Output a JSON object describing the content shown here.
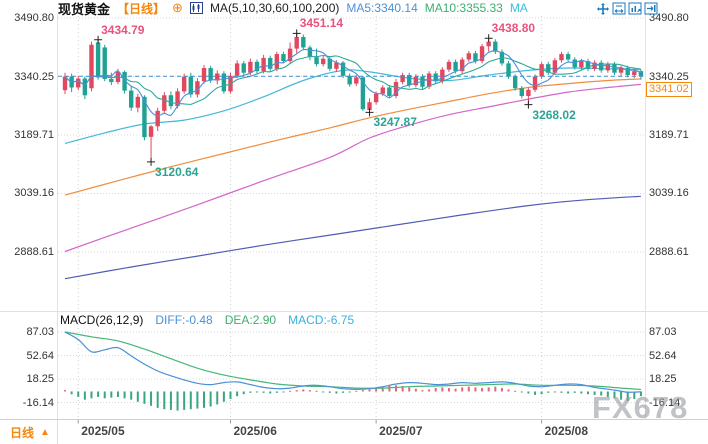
{
  "header": {
    "symbol": "现货黄金",
    "period": "【日线】",
    "icons": {
      "plus_circle": "⊕"
    },
    "ma_settings": "MA(5,10,30,60,100,200)",
    "ma5": "MA5:3340.14",
    "ma10": "MA10:3355.33",
    "ma30": "MA",
    "colors": {
      "ma5": "#4a90d9",
      "ma10": "#3cb06e",
      "ma30": "#39c0db",
      "accent": "#f5870f"
    }
  },
  "toolbar": {
    "icons": [
      "pan-icon",
      "fit-x-icon",
      "fit-y-icon",
      "jump-latest-icon"
    ]
  },
  "price_axis": {
    "labels": [
      "3490.80",
      "3340.25",
      "3189.71",
      "3039.16",
      "2888.61"
    ]
  },
  "current_price": {
    "value": "3341.02",
    "color": "#f5870f"
  },
  "macd": {
    "title": "MACD(26,12,9)",
    "diff_label": "DIFF:-0.48",
    "dea_label": "DEA:2.90",
    "macd_label": "MACD:-6.75",
    "axis_labels": [
      "87.03",
      "52.64",
      "18.25",
      "-16.14"
    ]
  },
  "time_axis": {
    "period": "日线",
    "arrow": "▲",
    "dates": [
      "2025/05",
      "2025/06",
      "2025/07",
      "2025/08"
    ]
  },
  "watermark": "FX678",
  "chart_data": {
    "type": "candlestick+macd",
    "title": "现货黄金 日线 (Spot Gold Daily)",
    "price_ticks": [
      3490.8,
      3340.25,
      3189.71,
      3039.16,
      2888.61
    ],
    "current_price": 3341.02,
    "candle_colors": {
      "up": "#e1485f",
      "down": "#1fa294"
    },
    "candles": [
      [
        3305,
        3350,
        3295,
        3340
      ],
      [
        3340,
        3348,
        3300,
        3312
      ],
      [
        3312,
        3342,
        3305,
        3335
      ],
      [
        3335,
        3340,
        3282,
        3292
      ],
      [
        3310,
        3430,
        3302,
        3422
      ],
      [
        3428,
        3434.79,
        3332,
        3338
      ],
      [
        3415,
        3422,
        3328,
        3334
      ],
      [
        3334,
        3350,
        3318,
        3326
      ],
      [
        3326,
        3360,
        3320,
        3352
      ],
      [
        3352,
        3356,
        3296,
        3304
      ],
      [
        3304,
        3316,
        3252,
        3260
      ],
      [
        3260,
        3296,
        3248,
        3288
      ],
      [
        3288,
        3292,
        3176,
        3184
      ],
      [
        3185,
        3215,
        3120.64,
        3212
      ],
      [
        3212,
        3260,
        3200,
        3252
      ],
      [
        3252,
        3300,
        3244,
        3292
      ],
      [
        3292,
        3302,
        3256,
        3264
      ],
      [
        3264,
        3310,
        3258,
        3302
      ],
      [
        3302,
        3348,
        3296,
        3340
      ],
      [
        3340,
        3350,
        3286,
        3294
      ],
      [
        3294,
        3336,
        3286,
        3328
      ],
      [
        3328,
        3370,
        3322,
        3362
      ],
      [
        3362,
        3368,
        3324,
        3330
      ],
      [
        3330,
        3356,
        3320,
        3348
      ],
      [
        3348,
        3354,
        3296,
        3302
      ],
      [
        3302,
        3350,
        3296,
        3342
      ],
      [
        3342,
        3382,
        3336,
        3374
      ],
      [
        3374,
        3380,
        3344,
        3350
      ],
      [
        3350,
        3386,
        3344,
        3378
      ],
      [
        3378,
        3384,
        3348,
        3354
      ],
      [
        3354,
        3396,
        3348,
        3388
      ],
      [
        3388,
        3394,
        3354,
        3360
      ],
      [
        3360,
        3404,
        3354,
        3398
      ],
      [
        3398,
        3404,
        3374,
        3380
      ],
      [
        3380,
        3428,
        3374,
        3412
      ],
      [
        3412,
        3451.14,
        3400,
        3442
      ],
      [
        3442,
        3448,
        3408,
        3415
      ],
      [
        3415,
        3420,
        3382,
        3390
      ],
      [
        3390,
        3412,
        3366,
        3372
      ],
      [
        3372,
        3394,
        3366,
        3386
      ],
      [
        3386,
        3392,
        3354,
        3360
      ],
      [
        3360,
        3382,
        3352,
        3376
      ],
      [
        3376,
        3380,
        3336,
        3342
      ],
      [
        3342,
        3348,
        3314,
        3320
      ],
      [
        3322,
        3344,
        3316,
        3338
      ],
      [
        3338,
        3342,
        3252,
        3256
      ],
      [
        3254,
        3284,
        3247.87,
        3274
      ],
      [
        3274,
        3302,
        3268,
        3296
      ],
      [
        3296,
        3318,
        3290,
        3312
      ],
      [
        3312,
        3318,
        3284,
        3290
      ],
      [
        3290,
        3334,
        3284,
        3326
      ],
      [
        3326,
        3350,
        3320,
        3344
      ],
      [
        3344,
        3350,
        3312,
        3318
      ],
      [
        3318,
        3346,
        3312,
        3340
      ],
      [
        3340,
        3346,
        3308,
        3314
      ],
      [
        3314,
        3354,
        3308,
        3348
      ],
      [
        3348,
        3354,
        3322,
        3328
      ],
      [
        3328,
        3364,
        3322,
        3358
      ],
      [
        3358,
        3384,
        3352,
        3378
      ],
      [
        3378,
        3384,
        3348,
        3354
      ],
      [
        3354,
        3390,
        3348,
        3384
      ],
      [
        3384,
        3406,
        3378,
        3400
      ],
      [
        3400,
        3406,
        3374,
        3380
      ],
      [
        3380,
        3424,
        3374,
        3418
      ],
      [
        3418,
        3438.8,
        3404,
        3430
      ],
      [
        3430,
        3436,
        3398,
        3404
      ],
      [
        3404,
        3410,
        3368,
        3374
      ],
      [
        3374,
        3380,
        3334,
        3340
      ],
      [
        3340,
        3346,
        3304,
        3310
      ],
      [
        3310,
        3316,
        3284,
        3290
      ],
      [
        3290,
        3312,
        3268.02,
        3306
      ],
      [
        3306,
        3346,
        3300,
        3340
      ],
      [
        3340,
        3378,
        3334,
        3372
      ],
      [
        3372,
        3378,
        3344,
        3350
      ],
      [
        3350,
        3388,
        3344,
        3382
      ],
      [
        3382,
        3404,
        3376,
        3398
      ],
      [
        3398,
        3404,
        3378,
        3384
      ],
      [
        3384,
        3390,
        3358,
        3364
      ],
      [
        3364,
        3386,
        3358,
        3380
      ],
      [
        3380,
        3386,
        3354,
        3360
      ],
      [
        3360,
        3382,
        3354,
        3376
      ],
      [
        3376,
        3382,
        3350,
        3356
      ],
      [
        3356,
        3378,
        3350,
        3372
      ],
      [
        3372,
        3378,
        3344,
        3350
      ],
      [
        3350,
        3368,
        3340,
        3362
      ],
      [
        3362,
        3368,
        3338,
        3344
      ],
      [
        3344,
        3360,
        3336,
        3354
      ],
      [
        3354,
        3358,
        3332,
        3341.02
      ]
    ],
    "annotations": [
      {
        "index": 5,
        "price": 3434.79,
        "label": "3434.79",
        "type": "high"
      },
      {
        "index": 35,
        "price": 3451.14,
        "label": "3451.14",
        "type": "high"
      },
      {
        "index": 64,
        "price": 3438.8,
        "label": "3438.80",
        "type": "high"
      },
      {
        "index": 13,
        "price": 3120.64,
        "label": "3120.64",
        "type": "low"
      },
      {
        "index": 46,
        "price": 3247.87,
        "label": "3247.87",
        "type": "low"
      },
      {
        "index": 70,
        "price": 3268.02,
        "label": "3268.02",
        "type": "low"
      }
    ],
    "ma_lines": [
      {
        "name": "MA30",
        "color": "#45b8d9",
        "points": [
          [
            0,
            3168
          ],
          [
            6,
            3195
          ],
          [
            12,
            3218
          ],
          [
            18,
            3228
          ],
          [
            24,
            3252
          ],
          [
            30,
            3288
          ],
          [
            36,
            3330
          ],
          [
            42,
            3356
          ],
          [
            46,
            3352
          ],
          [
            52,
            3336
          ],
          [
            58,
            3330
          ],
          [
            64,
            3344
          ],
          [
            70,
            3356
          ],
          [
            76,
            3362
          ],
          [
            82,
            3360
          ],
          [
            87,
            3358
          ]
        ]
      },
      {
        "name": "MA60",
        "color": "#ef8d3e",
        "points": [
          [
            0,
            3035
          ],
          [
            8,
            3072
          ],
          [
            16,
            3108
          ],
          [
            24,
            3142
          ],
          [
            32,
            3176
          ],
          [
            40,
            3208
          ],
          [
            46,
            3234
          ],
          [
            52,
            3256
          ],
          [
            58,
            3276
          ],
          [
            64,
            3296
          ],
          [
            70,
            3312
          ],
          [
            76,
            3322
          ],
          [
            82,
            3330
          ],
          [
            87,
            3334
          ]
        ]
      },
      {
        "name": "MA100",
        "color": "#d466c9",
        "points": [
          [
            0,
            2890
          ],
          [
            10,
            2950
          ],
          [
            20,
            3010
          ],
          [
            30,
            3072
          ],
          [
            40,
            3132
          ],
          [
            46,
            3182
          ],
          [
            52,
            3215
          ],
          [
            58,
            3242
          ],
          [
            64,
            3262
          ],
          [
            70,
            3282
          ],
          [
            76,
            3300
          ],
          [
            82,
            3312
          ],
          [
            87,
            3320
          ]
        ]
      },
      {
        "name": "MA200",
        "color": "#515bb5",
        "points": [
          [
            0,
            2820
          ],
          [
            10,
            2850
          ],
          [
            20,
            2878
          ],
          [
            30,
            2906
          ],
          [
            40,
            2932
          ],
          [
            50,
            2958
          ],
          [
            60,
            2984
          ],
          [
            70,
            3008
          ],
          [
            78,
            3022
          ],
          [
            87,
            3032
          ]
        ]
      }
    ],
    "ma_overlay_colors": {
      "ma5": "#4a90d9",
      "ma10": "#2fa99a"
    },
    "months": [
      {
        "index": 2
      },
      {
        "index": 25
      },
      {
        "index": 47
      },
      {
        "index": 72
      }
    ],
    "macd": {
      "ticks": [
        87.03,
        52.64,
        18.25,
        -16.14
      ],
      "diff_value": -0.48,
      "dea_value": 2.9,
      "macd_value": -6.75,
      "colors": {
        "diff": "#4a90d9",
        "dea": "#45b878",
        "hist_pos": "#e06678",
        "hist_neg": "#3aa583"
      },
      "diff": [
        [
          0,
          87
        ],
        [
          2,
          76
        ],
        [
          4,
          58
        ],
        [
          6,
          61
        ],
        [
          8,
          64
        ],
        [
          10,
          52
        ],
        [
          12,
          40
        ],
        [
          14,
          30
        ],
        [
          16,
          23
        ],
        [
          18,
          17
        ],
        [
          20,
          12
        ],
        [
          22,
          10
        ],
        [
          24,
          13
        ],
        [
          26,
          14
        ],
        [
          28,
          10
        ],
        [
          30,
          6
        ],
        [
          32,
          4
        ],
        [
          34,
          5
        ],
        [
          36,
          8
        ],
        [
          38,
          9
        ],
        [
          40,
          7
        ],
        [
          42,
          4
        ],
        [
          44,
          3
        ],
        [
          46,
          4
        ],
        [
          48,
          7
        ],
        [
          50,
          11
        ],
        [
          52,
          13
        ],
        [
          54,
          12
        ],
        [
          56,
          10
        ],
        [
          58,
          11
        ],
        [
          60,
          13
        ],
        [
          62,
          12
        ],
        [
          64,
          13
        ],
        [
          66,
          14
        ],
        [
          68,
          12
        ],
        [
          70,
          8
        ],
        [
          72,
          7
        ],
        [
          74,
          9
        ],
        [
          76,
          11
        ],
        [
          78,
          10
        ],
        [
          80,
          6
        ],
        [
          83,
          2
        ],
        [
          85,
          -1
        ],
        [
          87,
          -0.48
        ]
      ],
      "dea": [
        [
          0,
          87
        ],
        [
          4,
          80
        ],
        [
          8,
          74
        ],
        [
          12,
          62
        ],
        [
          16,
          48
        ],
        [
          20,
          34
        ],
        [
          24,
          24
        ],
        [
          28,
          17
        ],
        [
          32,
          11
        ],
        [
          36,
          8
        ],
        [
          40,
          7
        ],
        [
          44,
          5
        ],
        [
          48,
          5
        ],
        [
          52,
          7
        ],
        [
          56,
          8
        ],
        [
          60,
          9
        ],
        [
          64,
          10
        ],
        [
          68,
          11
        ],
        [
          72,
          9
        ],
        [
          76,
          9
        ],
        [
          80,
          8
        ],
        [
          84,
          5
        ],
        [
          87,
          2.9
        ]
      ],
      "hist": [
        2,
        -4,
        -8,
        -12,
        -10,
        -8,
        -10,
        -9,
        -8,
        -10,
        -12,
        -15,
        -18,
        -21,
        -24,
        -26,
        -27,
        -28,
        -27,
        -26,
        -25,
        -24,
        -22,
        -19,
        -15,
        -11,
        -7,
        -4,
        -2,
        -1,
        -2,
        -3,
        -2,
        -1,
        1,
        2,
        3,
        2,
        1,
        -1,
        -2,
        -3,
        -2,
        -1,
        1,
        2,
        3,
        4,
        6,
        8,
        9,
        8,
        6,
        4,
        2,
        3,
        5,
        6,
        5,
        4,
        6,
        7,
        6,
        5,
        6,
        7,
        5,
        3,
        1,
        -1,
        -3,
        -5,
        -4,
        -2,
        -1,
        -2,
        -3,
        -2,
        -3,
        -4,
        -5,
        -6,
        -8,
        -10,
        -12,
        -14,
        -11,
        -6.75
      ]
    }
  }
}
